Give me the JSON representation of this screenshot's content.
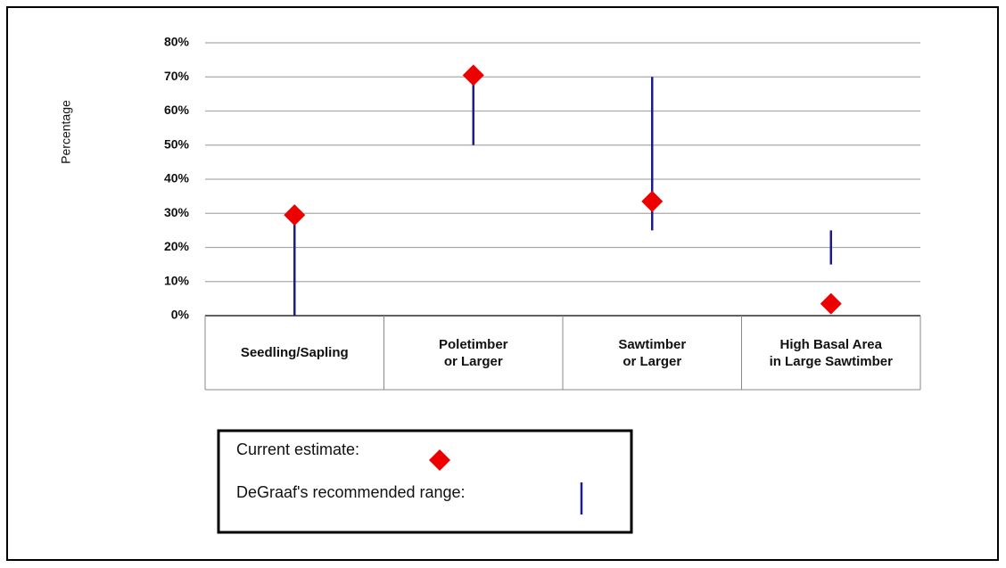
{
  "chart_data": {
    "type": "range",
    "y_label": "Percentage",
    "categories": [
      "Seedling/Sapling",
      "Poletimber\nor Larger",
      "Sawtimber\nor Larger",
      "High Basal Area\nin Large Sawtimber"
    ],
    "ylim": [
      0,
      80
    ],
    "yticks": [
      {
        "value": 0,
        "label": "0%"
      },
      {
        "value": 10,
        "label": "10%"
      },
      {
        "value": 20,
        "label": "20%"
      },
      {
        "value": 30,
        "label": "30%"
      },
      {
        "value": 40,
        "label": "40%"
      },
      {
        "value": 50,
        "label": "50%"
      },
      {
        "value": 60,
        "label": "60%"
      },
      {
        "value": 70,
        "label": "70%"
      },
      {
        "value": 80,
        "label": "80%"
      }
    ],
    "grid": true,
    "series": [
      {
        "name": "Current estimate:",
        "color": "#ee0000",
        "values": [
          29.5,
          70.5,
          33.5,
          3.5
        ]
      },
      {
        "name": "DeGraaf's recommended range:",
        "color": "#1c1c8a",
        "low": [
          0,
          50,
          25,
          15
        ],
        "high": [
          30,
          70,
          70,
          25
        ]
      }
    ]
  }
}
